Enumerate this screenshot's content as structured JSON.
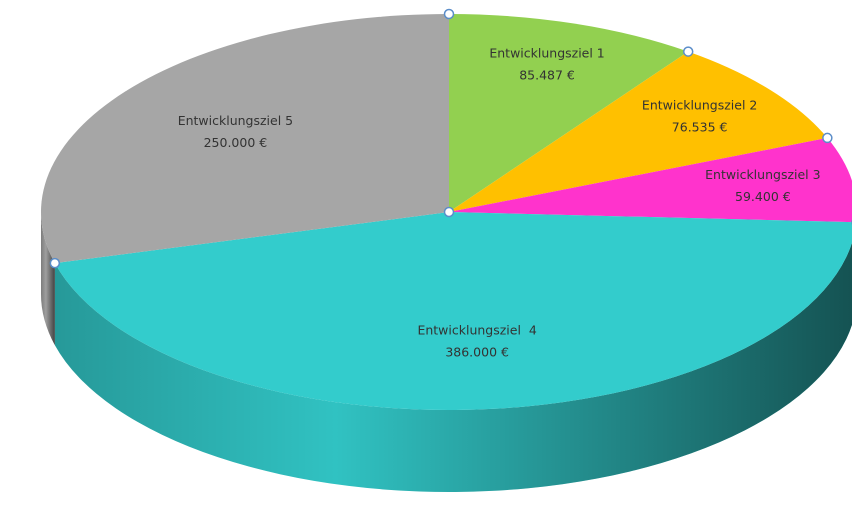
{
  "chart_data": {
    "type": "pie",
    "categories": [
      "Entwicklungsziel 1",
      "Entwicklungsziel 2",
      "Entwicklungsziel 3",
      "Entwicklungsziel  4",
      "Entwicklungsziel 5"
    ],
    "values": [
      85487,
      76535,
      59400,
      386000,
      250000
    ],
    "value_labels": [
      "85.487 €",
      "76.535 €",
      "59.400 €",
      "386.000 €",
      "250.000 €"
    ],
    "colors": [
      "#92d050",
      "#ffc000",
      "#ff33cc",
      "#33cccc",
      "#a6a6a6"
    ]
  }
}
